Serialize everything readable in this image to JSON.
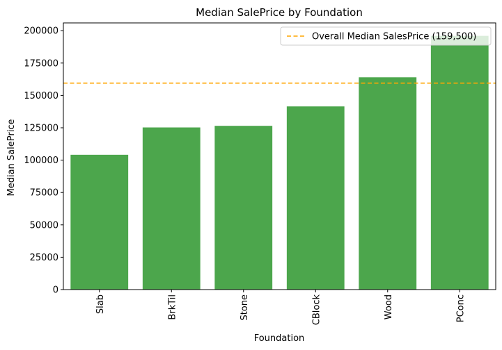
{
  "chart_data": {
    "type": "bar",
    "title": "Median SalePrice by Foundation",
    "xlabel": "Foundation",
    "ylabel": "Median SalePrice",
    "categories": [
      "Slab",
      "BrkTil",
      "Stone",
      "CBlock",
      "Wood",
      "PConc"
    ],
    "values": [
      104150,
      125250,
      126500,
      141500,
      164000,
      196000
    ],
    "ylim": [
      0,
      206000
    ],
    "yticks": [
      0,
      25000,
      50000,
      75000,
      100000,
      125000,
      150000,
      175000,
      200000
    ],
    "bar_color": "#4ca64c",
    "reference_line": {
      "value": 159500,
      "label": "Overall Median SalesPrice (159,500)",
      "color": "#ffa500",
      "style": "dashed"
    },
    "legend_position": "top-right",
    "grid": false
  }
}
